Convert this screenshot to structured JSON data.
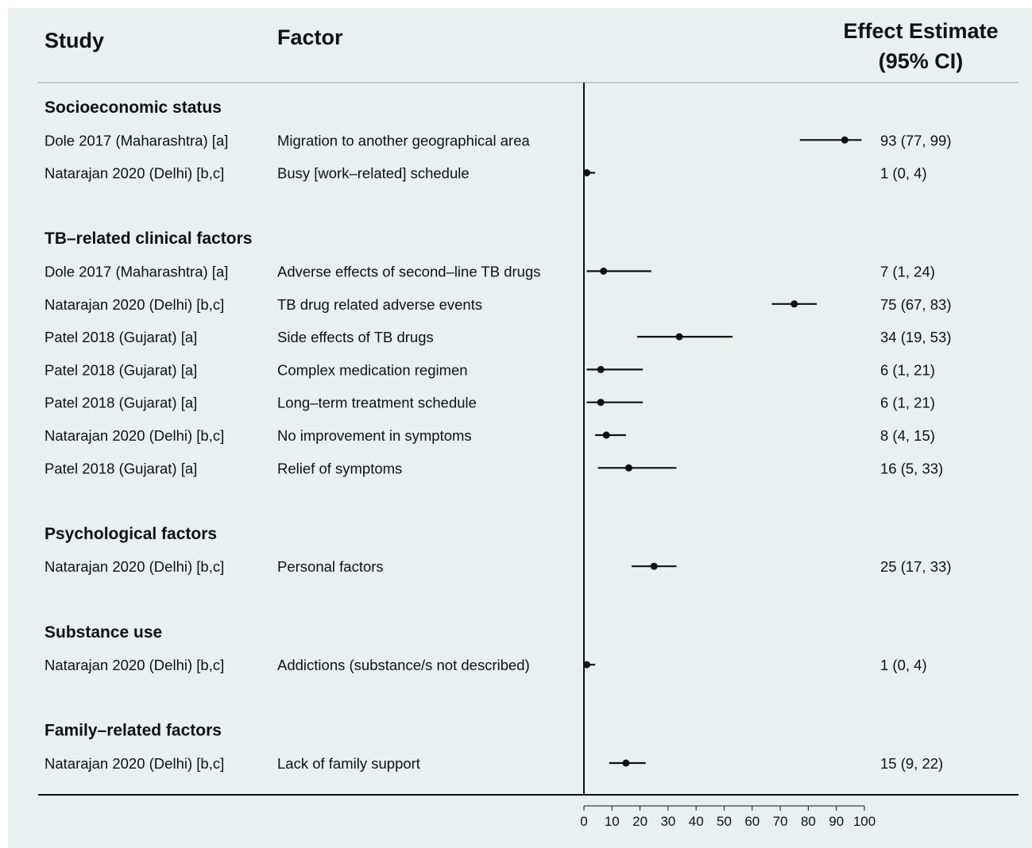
{
  "headers": {
    "study": "Study",
    "factor": "Factor",
    "effect_line1": "Effect Estimate",
    "effect_line2": "(95% CI)"
  },
  "chart_data": {
    "type": "forest",
    "xlim": [
      0,
      100
    ],
    "xticks": [
      0,
      10,
      20,
      30,
      40,
      50,
      60,
      70,
      80,
      90,
      100
    ],
    "reference_line": 0,
    "groups": [
      {
        "name": "Socioeconomic status",
        "rows": [
          {
            "study": "Dole 2017 (Maharashtra) [a]",
            "factor": "Migration to another geographical area",
            "estimate": 93,
            "lower": 77,
            "upper": 99,
            "label": "93 (77, 99)"
          },
          {
            "study": "Natarajan 2020 (Delhi) [b,c]",
            "factor": "Busy [work–related] schedule",
            "estimate": 1,
            "lower": 0,
            "upper": 4,
            "label": "1 (0, 4)"
          }
        ]
      },
      {
        "name": "TB–related clinical factors",
        "rows": [
          {
            "study": "Dole 2017 (Maharashtra) [a]",
            "factor": "Adverse effects of second–line TB drugs",
            "estimate": 7,
            "lower": 1,
            "upper": 24,
            "label": "7 (1, 24)"
          },
          {
            "study": "Natarajan 2020 (Delhi) [b,c]",
            "factor": "TB drug related adverse events",
            "estimate": 75,
            "lower": 67,
            "upper": 83,
            "label": "75 (67, 83)"
          },
          {
            "study": "Patel 2018 (Gujarat) [a]",
            "factor": "Side effects of TB drugs",
            "estimate": 34,
            "lower": 19,
            "upper": 53,
            "label": "34 (19, 53)"
          },
          {
            "study": "Patel 2018 (Gujarat) [a]",
            "factor": "Complex medication regimen",
            "estimate": 6,
            "lower": 1,
            "upper": 21,
            "label": "6 (1, 21)"
          },
          {
            "study": "Patel 2018 (Gujarat) [a]",
            "factor": "Long–term treatment schedule",
            "estimate": 6,
            "lower": 1,
            "upper": 21,
            "label": "6 (1, 21)"
          },
          {
            "study": "Natarajan 2020 (Delhi) [b,c]",
            "factor": "No improvement in symptoms",
            "estimate": 8,
            "lower": 4,
            "upper": 15,
            "label": "8 (4, 15)"
          },
          {
            "study": "Patel 2018 (Gujarat) [a]",
            "factor": "Relief of symptoms",
            "estimate": 16,
            "lower": 5,
            "upper": 33,
            "label": "16 (5, 33)"
          }
        ]
      },
      {
        "name": "Psychological factors",
        "rows": [
          {
            "study": "Natarajan 2020 (Delhi) [b,c]",
            "factor": "Personal factors",
            "estimate": 25,
            "lower": 17,
            "upper": 33,
            "label": "25 (17, 33)"
          }
        ]
      },
      {
        "name": "Substance use",
        "rows": [
          {
            "study": "Natarajan 2020 (Delhi) [b,c]",
            "factor": "Addictions (substance/s not described)",
            "estimate": 1,
            "lower": 0,
            "upper": 4,
            "label": "1 (0, 4)"
          }
        ]
      },
      {
        "name": "Family–related factors",
        "rows": [
          {
            "study": "Natarajan 2020 (Delhi) [b,c]",
            "factor": "Lack of family support",
            "estimate": 15,
            "lower": 9,
            "upper": 22,
            "label": "15 (9, 22)"
          }
        ]
      }
    ]
  },
  "colors": {
    "background": "#e8f0f0",
    "ink": "#111111",
    "header_rule": "#bbbbbb"
  }
}
